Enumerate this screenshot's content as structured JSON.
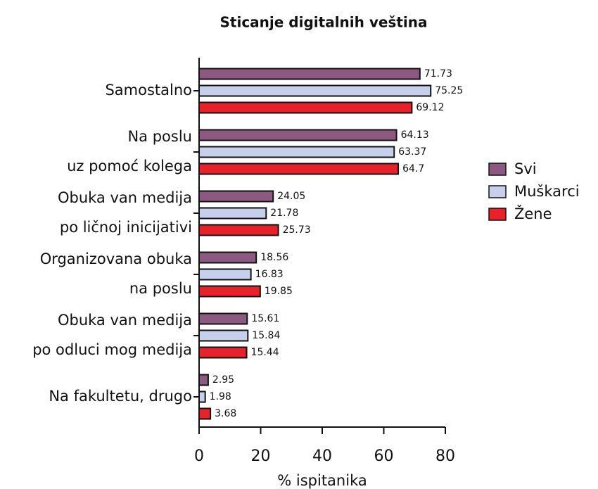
{
  "chart_data": {
    "type": "bar",
    "orientation": "horizontal",
    "title": "Sticanje digitalnih veština",
    "x_label": "% ispitanika",
    "categories": [
      "Samostalno",
      "Na poslu\nuz pomoć kolega",
      "Obuka van medija\npo ličnoj inicijativi",
      "Organizovana obuka\nna poslu",
      "Obuka van medija\npo odluci mog medija",
      "Na fakultetu, drugo"
    ],
    "series": [
      {
        "name": "Svi",
        "color": "#8c5a80",
        "values": [
          71.73,
          64.13,
          24.05,
          18.56,
          15.61,
          2.95
        ]
      },
      {
        "name": "Muškarci",
        "color": "#c6d0ea",
        "values": [
          75.25,
          63.37,
          21.78,
          16.83,
          15.84,
          1.98
        ]
      },
      {
        "name": "Žene",
        "color": "#e8222b",
        "values": [
          69.12,
          64.7,
          25.73,
          19.85,
          15.44,
          3.68
        ]
      }
    ],
    "xlim": [
      0,
      80
    ],
    "xticks": [
      0,
      20,
      40,
      60,
      80
    ],
    "legend": "right"
  }
}
